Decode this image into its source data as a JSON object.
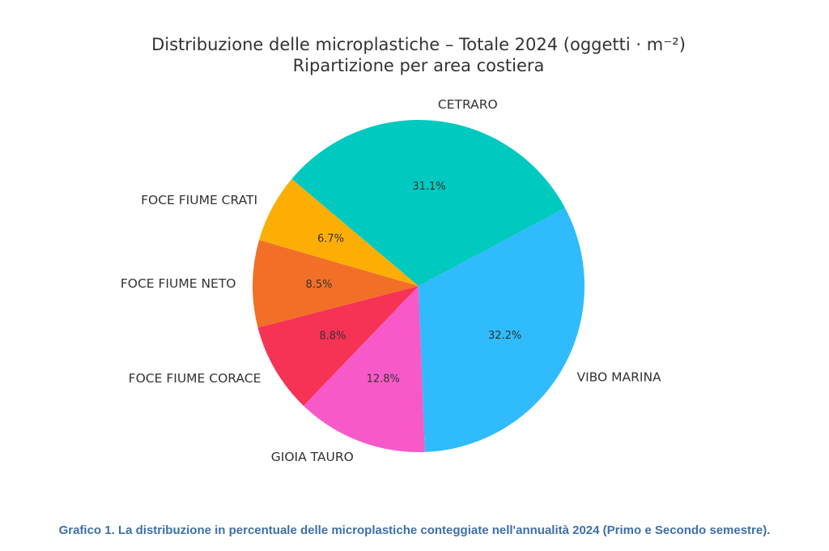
{
  "chart_data": {
    "type": "pie",
    "title": "Distribuzione delle microplastiche – Totale 2024 (oggetti · m⁻²)",
    "subtitle": "Ripartizione per area costiera",
    "slices": [
      {
        "label": "CETRARO",
        "value": 31.1,
        "value_label": "31.1%",
        "color": "#00c9c0"
      },
      {
        "label": "FOCE FIUME CRATI",
        "value": 6.7,
        "value_label": "6.7%",
        "color": "#fcae05"
      },
      {
        "label": "FOCE FIUME NETO",
        "value": 8.5,
        "value_label": "8.5%",
        "color": "#f26f27"
      },
      {
        "label": "FOCE FIUME CORACE",
        "value": 8.8,
        "value_label": "8.8%",
        "color": "#f63255"
      },
      {
        "label": "GIOIA TAURO",
        "value": 12.8,
        "value_label": "12.8%",
        "color": "#f75ac8"
      },
      {
        "label": "VIBO MARINA",
        "value": 32.2,
        "value_label": "32.2%",
        "color": "#2fbbfc"
      }
    ],
    "start_angle_deg": 28,
    "direction": "counterclockwise"
  },
  "caption": "Grafico 1. La distribuzione in percentuale delle microplastiche conteggiate nell'annualità 2024 (Primo e Secondo semestre)."
}
